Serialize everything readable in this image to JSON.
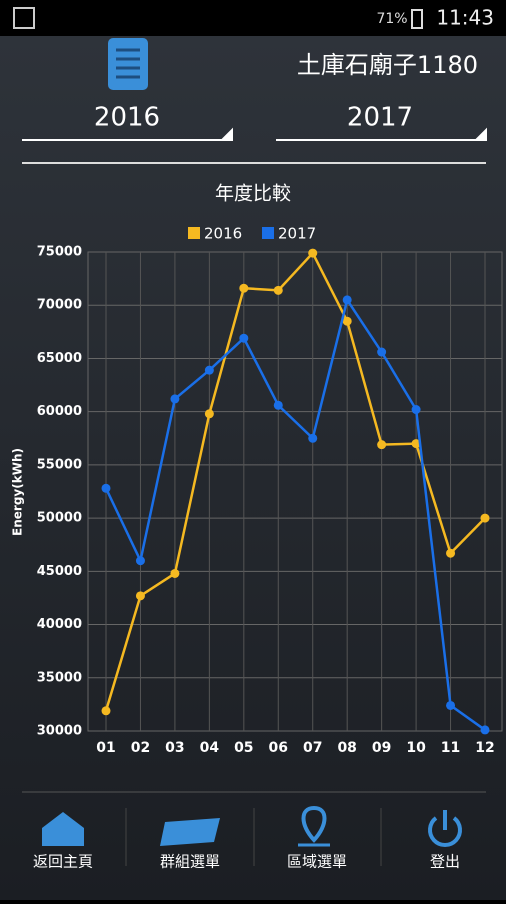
{
  "status_bar": {
    "battery": "71%",
    "time": "11:43"
  },
  "header": {
    "site": "土庫石廟子1180",
    "year_a": "2016",
    "year_b": "2017"
  },
  "chart_data": {
    "type": "line",
    "title": "年度比較",
    "y_label": "Energy(kWh)",
    "categories": [
      "01",
      "02",
      "03",
      "04",
      "05",
      "06",
      "07",
      "08",
      "09",
      "10",
      "11",
      "12"
    ],
    "series": [
      {
        "name": "2016",
        "color": "#f5b921",
        "values": [
          31900,
          42700,
          44800,
          59800,
          71600,
          71400,
          74900,
          68500,
          56900,
          57000,
          46700,
          50000
        ]
      },
      {
        "name": "2017",
        "color": "#1a6fe8",
        "values": [
          52800,
          46000,
          61200,
          63900,
          66900,
          60600,
          57500,
          70500,
          65600,
          60200,
          32400,
          30100
        ]
      }
    ],
    "ylim": [
      30000,
      75000
    ],
    "yticks": [
      30000,
      35000,
      40000,
      45000,
      50000,
      55000,
      60000,
      65000,
      70000,
      75000
    ],
    "grid": true
  },
  "nav": [
    {
      "label": "返回主頁"
    },
    {
      "label": "群組選單"
    },
    {
      "label": "區域選單"
    },
    {
      "label": "登出"
    }
  ]
}
